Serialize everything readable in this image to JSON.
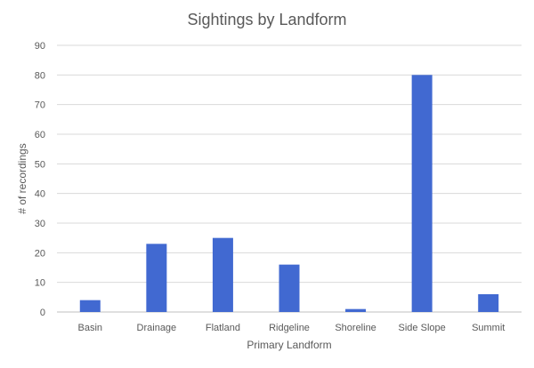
{
  "chart_data": {
    "type": "bar",
    "title": "Sightings by Landform",
    "xlabel": "Primary Landform",
    "ylabel": "# of recordings",
    "categories": [
      "Basin",
      "Drainage",
      "Flatland",
      "Ridgeline",
      "Shoreline",
      "Side Slope",
      "Summit"
    ],
    "values": [
      4,
      23,
      25,
      16,
      1,
      80,
      6
    ],
    "ylim": [
      0,
      90
    ],
    "yticks": [
      0,
      10,
      20,
      30,
      40,
      50,
      60,
      70,
      80,
      90
    ],
    "grid": true,
    "legend": "none",
    "colors": {
      "bar": "#4169d1",
      "grid": "#d9d9d9",
      "text": "#595959"
    }
  }
}
